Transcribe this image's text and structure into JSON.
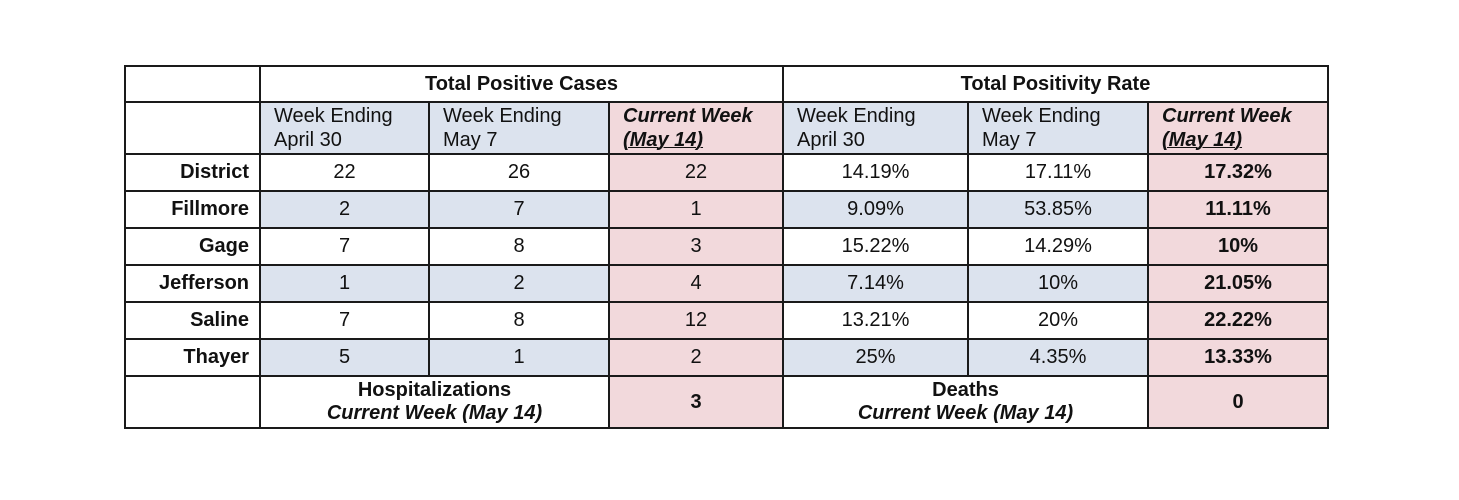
{
  "table": {
    "groups": {
      "cases": "Total Positive Cases",
      "rate": "Total Positivity Rate"
    },
    "subheaders": [
      {
        "line1": "Week Ending",
        "line2": "April 30"
      },
      {
        "line1": "Week Ending",
        "line2": "May 7"
      },
      {
        "line1": "Current Week",
        "line2": "(May 14)"
      },
      {
        "line1": "Week Ending",
        "line2": "April 30"
      },
      {
        "line1": "Week Ending",
        "line2": "May 7"
      },
      {
        "line1": "Current Week",
        "line2": "(May 14)"
      }
    ],
    "rows": [
      {
        "label": "District",
        "values": [
          "22",
          "26",
          "22",
          "14.19%",
          "17.11%",
          "17.32%"
        ]
      },
      {
        "label": "Fillmore",
        "values": [
          "2",
          "7",
          "1",
          "9.09%",
          "53.85%",
          "11.11%"
        ]
      },
      {
        "label": "Gage",
        "values": [
          "7",
          "8",
          "3",
          "15.22%",
          "14.29%",
          "10%"
        ]
      },
      {
        "label": "Jefferson",
        "values": [
          "1",
          "2",
          "4",
          "7.14%",
          "10%",
          "21.05%"
        ]
      },
      {
        "label": "Saline",
        "values": [
          "7",
          "8",
          "12",
          "13.21%",
          "20%",
          "22.22%"
        ]
      },
      {
        "label": "Thayer",
        "values": [
          "5",
          "1",
          "2",
          "25%",
          "4.35%",
          "13.33%"
        ]
      }
    ],
    "footer": {
      "hospitalizations": {
        "label": "Hospitalizations",
        "sub": "Current Week (May 14)",
        "value": "3"
      },
      "deaths": {
        "label": "Deaths",
        "sub": "Current Week (May 14)",
        "value": "0"
      }
    }
  },
  "colors": {
    "blue_shade": "#dce3ee",
    "pink_shade": "#f2d9dc",
    "border": "#1a1a1a"
  }
}
